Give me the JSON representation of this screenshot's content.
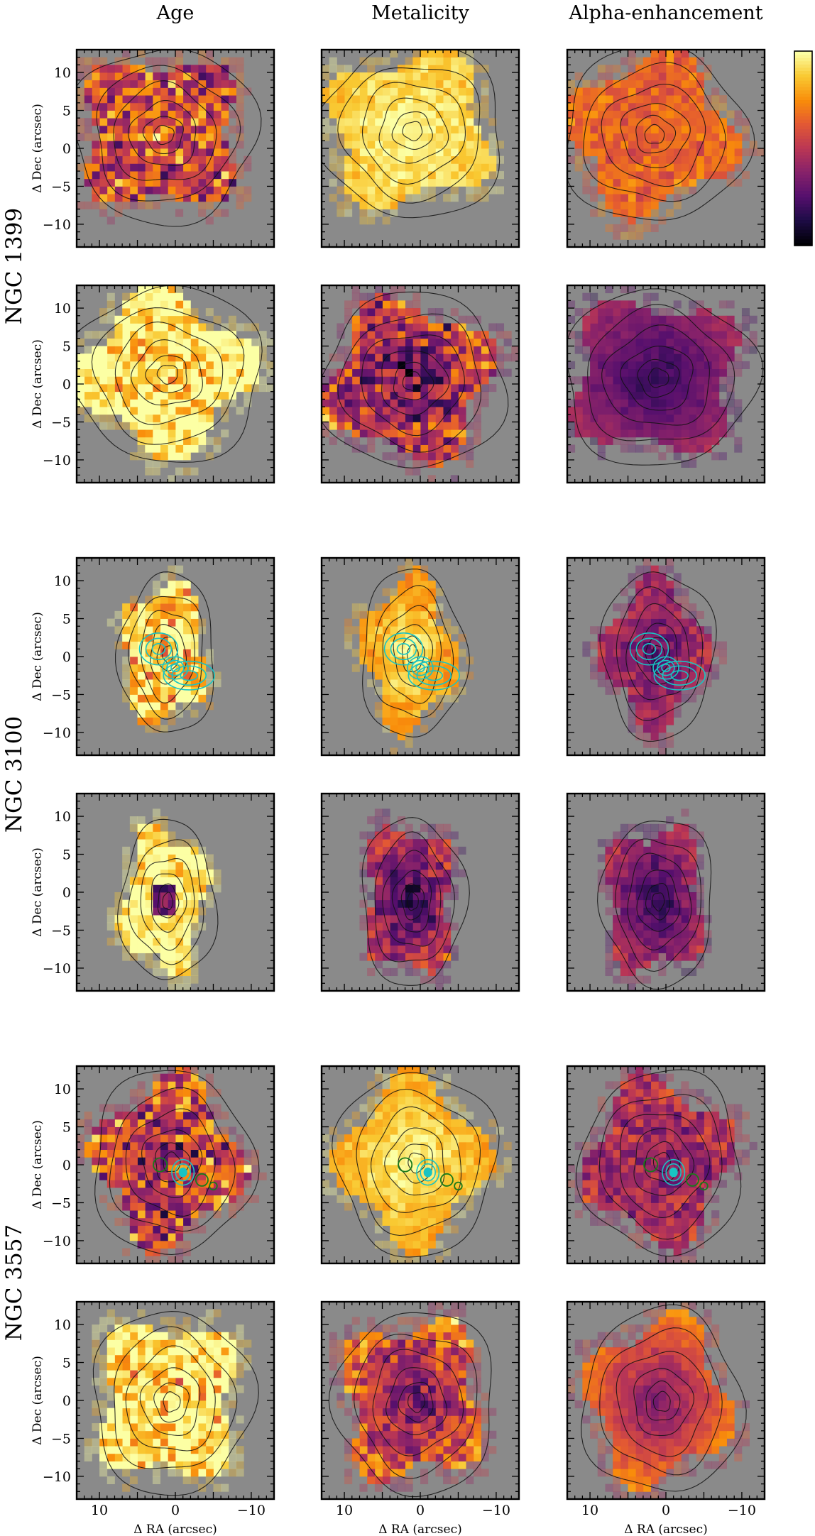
{
  "chart_data": {
    "type": "heatmap",
    "columns": [
      "Age",
      "Metalicity",
      "Alpha-enhancement"
    ],
    "galaxies": [
      "NGC 1399",
      "NGC 3100",
      "NGC 3557"
    ],
    "axes": {
      "xlabel": "Δ RA (arcsec)",
      "ylabel": "Δ Dec (arcsec)",
      "xlim": [
        13,
        -13
      ],
      "ylim": [
        -13,
        13
      ],
      "xticks": [
        10,
        0,
        -10
      ],
      "xtick_labels": [
        "10",
        "0",
        "−10"
      ],
      "yticks": [
        10,
        5,
        0,
        -5,
        -10
      ],
      "ytick_labels": [
        "10",
        "5",
        "0",
        "−5",
        "−10"
      ]
    },
    "colormap": "inferno",
    "colorbar": {
      "ticks_labeled": false
    },
    "panels": [
      {
        "galaxy": "NGC 1399",
        "row": 0,
        "col": 0,
        "quantity": "Age",
        "center": [
          1.5,
          1.5
        ],
        "rx": 11.5,
        "ry": 11,
        "mean": 0.58,
        "noise": 0.42,
        "radial": -0.05,
        "seed": 11,
        "extra": "none"
      },
      {
        "galaxy": "NGC 1399",
        "row": 0,
        "col": 1,
        "quantity": "Metalicity",
        "center": [
          1.0,
          2.0
        ],
        "rx": 11.5,
        "ry": 11,
        "mean": 0.93,
        "noise": 0.1,
        "radial": -0.12,
        "seed": 12,
        "extra": "none"
      },
      {
        "galaxy": "NGC 1399",
        "row": 0,
        "col": 2,
        "quantity": "Alpha-enhancement",
        "center": [
          1.5,
          1.5
        ],
        "rx": 11.5,
        "ry": 11,
        "mean": 0.66,
        "noise": 0.14,
        "radial": 0.03,
        "seed": 13,
        "extra": "none"
      },
      {
        "galaxy": "NGC 1399",
        "row": 1,
        "col": 0,
        "quantity": "Age",
        "center": [
          1.0,
          1.0
        ],
        "rx": 12,
        "ry": 11,
        "mean": 0.97,
        "noise": 0.35,
        "radial": 0.2,
        "seed": 21,
        "extra": "none"
      },
      {
        "galaxy": "NGC 1399",
        "row": 1,
        "col": 1,
        "quantity": "Metalicity",
        "center": [
          1.0,
          0.0
        ],
        "rx": 11.5,
        "ry": 11,
        "mean": 0.42,
        "noise": 0.4,
        "radial": 0.35,
        "seed": 22,
        "extra": "none"
      },
      {
        "galaxy": "NGC 1399",
        "row": 1,
        "col": 2,
        "quantity": "Alpha-enhancement",
        "center": [
          1.0,
          0.5
        ],
        "rx": 12,
        "ry": 11,
        "mean": 0.3,
        "noise": 0.07,
        "radial": 0.28,
        "seed": 23,
        "extra": "none"
      },
      {
        "galaxy": "NGC 3100",
        "row": 2,
        "col": 0,
        "quantity": "Age",
        "center": [
          1.0,
          0.0
        ],
        "rx": 6,
        "ry": 10,
        "mean": 0.9,
        "noise": 0.35,
        "radial": 0.08,
        "seed": 31,
        "extra": "cyan"
      },
      {
        "galaxy": "NGC 3100",
        "row": 2,
        "col": 1,
        "quantity": "Metalicity",
        "center": [
          1.0,
          0.0
        ],
        "rx": 6.5,
        "ry": 10.5,
        "mean": 0.86,
        "noise": 0.12,
        "radial": -0.22,
        "seed": 32,
        "extra": "cyan"
      },
      {
        "galaxy": "NGC 3100",
        "row": 2,
        "col": 2,
        "quantity": "Alpha-enhancement",
        "center": [
          1.0,
          0.0
        ],
        "rx": 7,
        "ry": 10.5,
        "mean": 0.38,
        "noise": 0.15,
        "radial": 0.2,
        "seed": 33,
        "extra": "cyan"
      },
      {
        "galaxy": "NGC 3100",
        "row": 3,
        "col": 0,
        "quantity": "Age",
        "center": [
          1.0,
          -1.5
        ],
        "rx": 6,
        "ry": 10,
        "mean": 0.97,
        "noise": 0.2,
        "radial": -0.05,
        "seed": 41,
        "extra": "dark-core"
      },
      {
        "galaxy": "NGC 3100",
        "row": 3,
        "col": 1,
        "quantity": "Metalicity",
        "center": [
          1.0,
          -1.5
        ],
        "rx": 6.5,
        "ry": 10.5,
        "mean": 0.35,
        "noise": 0.22,
        "radial": 0.38,
        "seed": 42,
        "extra": "none"
      },
      {
        "galaxy": "NGC 3100",
        "row": 3,
        "col": 2,
        "quantity": "Alpha-enhancement",
        "center": [
          1.0,
          -1.5
        ],
        "rx": 7,
        "ry": 10.5,
        "mean": 0.32,
        "noise": 0.12,
        "radial": 0.32,
        "seed": 43,
        "extra": "none"
      },
      {
        "galaxy": "NGC 3557",
        "row": 4,
        "col": 0,
        "quantity": "Age",
        "center": [
          0.5,
          0.0
        ],
        "rx": 10,
        "ry": 11.5,
        "mean": 0.52,
        "noise": 0.45,
        "radial": 0.18,
        "seed": 51,
        "extra": "cyan-green"
      },
      {
        "galaxy": "NGC 3557",
        "row": 4,
        "col": 1,
        "quantity": "Metalicity",
        "center": [
          0.5,
          0.0
        ],
        "rx": 10,
        "ry": 11.5,
        "mean": 0.9,
        "noise": 0.1,
        "radial": -0.2,
        "seed": 52,
        "extra": "cyan-green"
      },
      {
        "galaxy": "NGC 3557",
        "row": 4,
        "col": 2,
        "quantity": "Alpha-enhancement",
        "center": [
          0.5,
          0.0
        ],
        "rx": 10,
        "ry": 11.5,
        "mean": 0.44,
        "noise": 0.22,
        "radial": 0.1,
        "seed": 53,
        "extra": "cyan-green"
      },
      {
        "galaxy": "NGC 3557",
        "row": 5,
        "col": 0,
        "quantity": "Age",
        "center": [
          0.5,
          -0.5
        ],
        "rx": 10,
        "ry": 11.5,
        "mean": 0.95,
        "noise": 0.35,
        "radial": 0.15,
        "seed": 61,
        "extra": "none"
      },
      {
        "galaxy": "NGC 3557",
        "row": 5,
        "col": 1,
        "quantity": "Metalicity",
        "center": [
          0.5,
          -0.5
        ],
        "rx": 10,
        "ry": 11.5,
        "mean": 0.5,
        "noise": 0.28,
        "radial": 0.4,
        "seed": 62,
        "extra": "none"
      },
      {
        "galaxy": "NGC 3557",
        "row": 5,
        "col": 2,
        "quantity": "Alpha-enhancement",
        "center": [
          0.5,
          -0.5
        ],
        "rx": 10,
        "ry": 11.5,
        "mean": 0.52,
        "noise": 0.08,
        "radial": 0.4,
        "seed": 63,
        "extra": "none"
      }
    ]
  }
}
